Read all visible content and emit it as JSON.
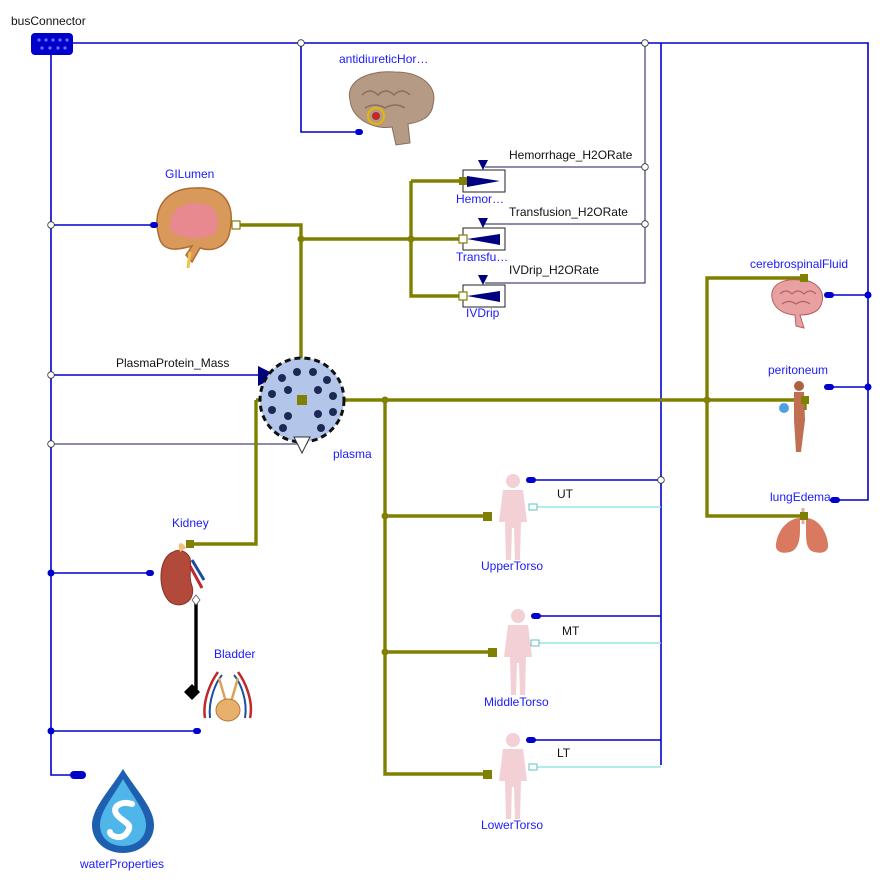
{
  "labels": {
    "busConnector": "busConnector",
    "antidiuretic": "antidiureticHor…",
    "gilumen": "GILumen",
    "hemorrhage_rate": "Hemorrhage_H2ORate",
    "hemor": "Hemor…",
    "transfusion_rate": "Transfusion_H2ORate",
    "transfu": "Transfu…",
    "ivdrip_rate": "IVDrip_H2ORate",
    "ivdrip": "IVDrip",
    "plasma_protein": "PlasmaProtein_Mass",
    "plasma": "plasma",
    "kidney": "Kidney",
    "bladder": "Bladder",
    "water_properties": "waterProperties",
    "cerebrospinal": "cerebrospinalFluid",
    "peritoneum": "peritoneum",
    "lung_edema": "lungEdema",
    "ut": "UT",
    "upper_torso": "UpperTorso",
    "mt": "MT",
    "middle_torso": "MiddleTorso",
    "lt": "LT",
    "lower_torso": "LowerTorso"
  },
  "colors": {
    "signal": "#0000cc",
    "fluid": "#808000",
    "label_blue": "#1a1aff",
    "thin": "#1a1a5a",
    "cyan": "#7fe0e0",
    "torso": "#f2d0d6"
  },
  "icons": [
    "bus-connector-icon",
    "brain-icon",
    "intestine-icon",
    "pump-icon",
    "plasma-icon",
    "kidney-icon",
    "bladder-icon",
    "water-drop-icon",
    "body-icon",
    "lungs-icon",
    "torso-icon"
  ]
}
